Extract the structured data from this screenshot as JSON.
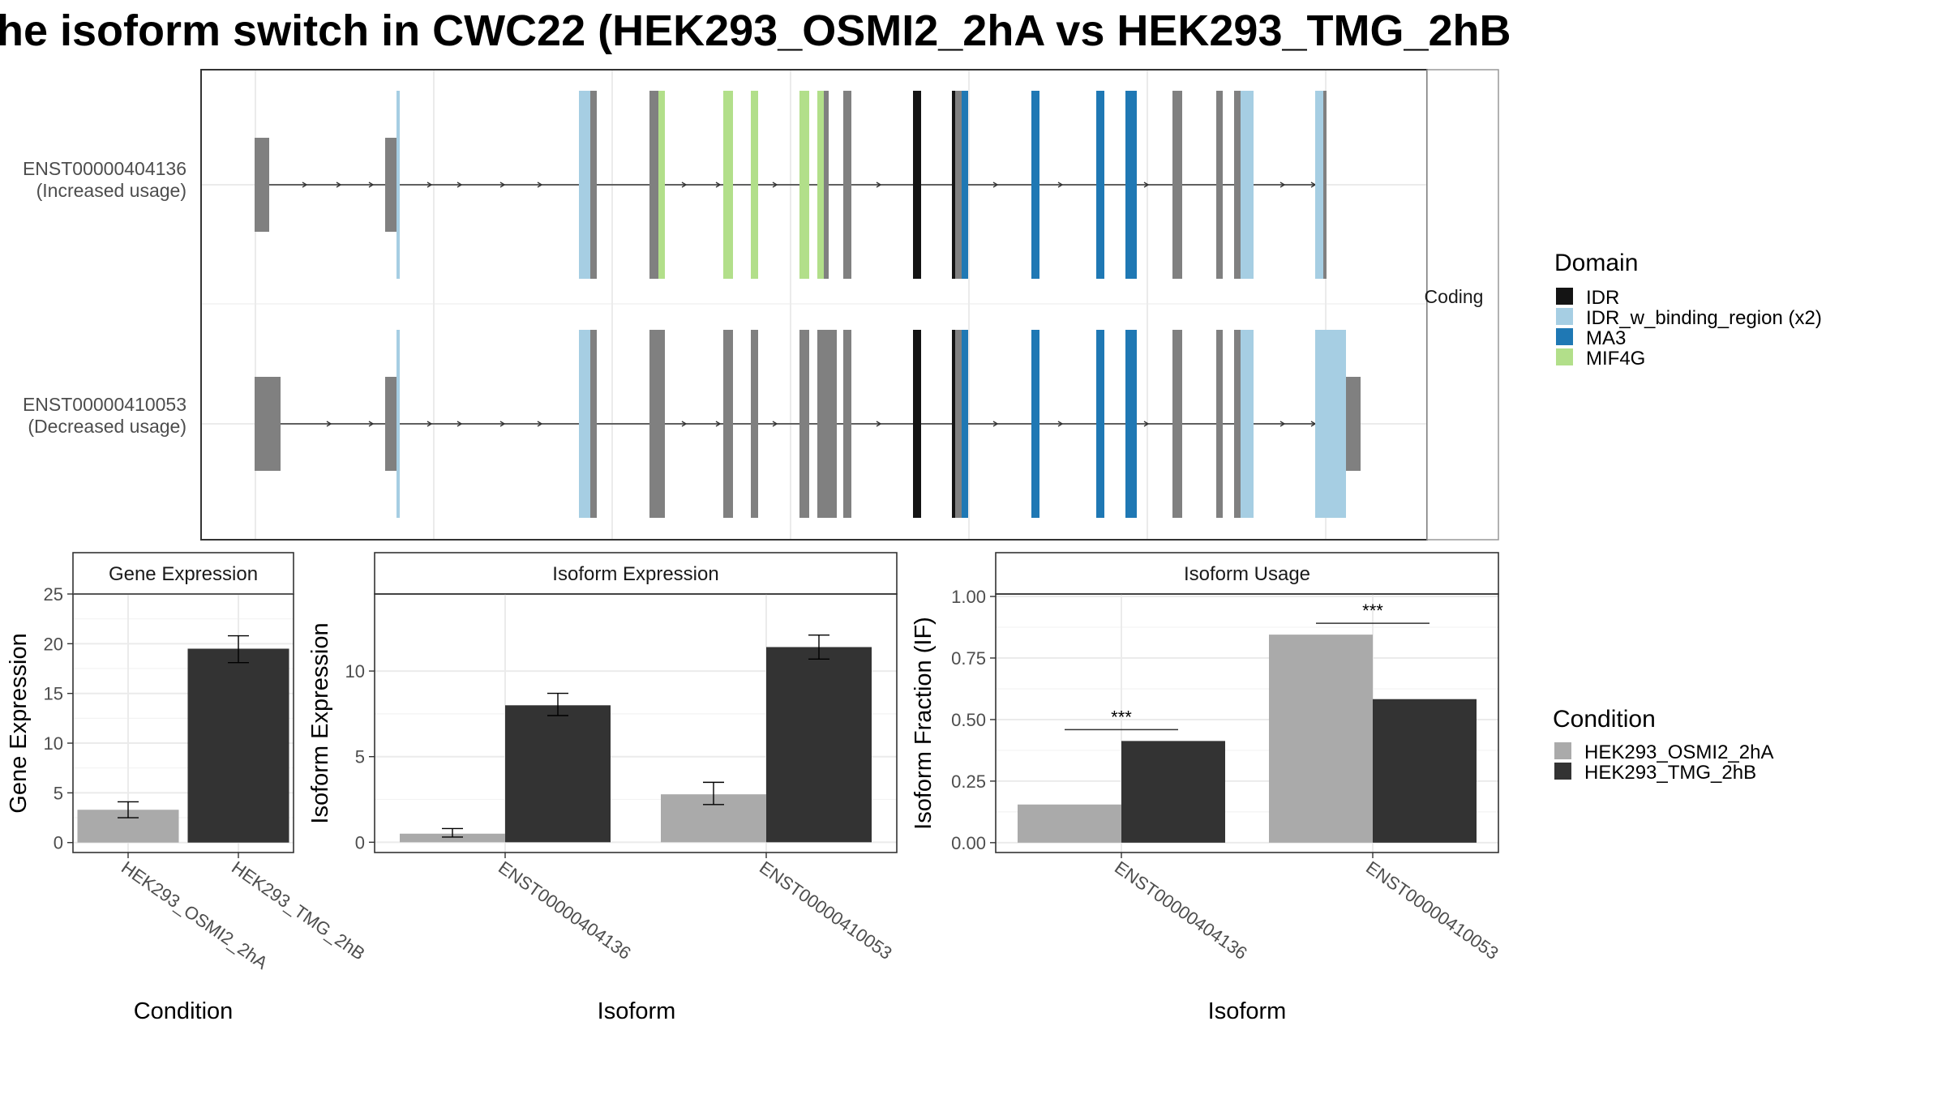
{
  "title": "he isoform switch in CWC22 (HEK293_OSMI2_2hA vs HEK293_TMG_2hB",
  "structure_panel": {
    "strip_label": "Coding",
    "transcripts": [
      {
        "id": "ENST00000404136",
        "usage": "(Increased usage)"
      },
      {
        "id": "ENST00000410053",
        "usage": "(Decreased usage)"
      }
    ]
  },
  "domain_legend": {
    "title": "Domain",
    "items": [
      {
        "label": "IDR",
        "color": "#141414"
      },
      {
        "label": "IDR_w_binding_region (x2)",
        "color": "#a6cee3"
      },
      {
        "label": "MA3",
        "color": "#1f78b4"
      },
      {
        "label": "MIF4G",
        "color": "#b2df8a"
      }
    ]
  },
  "condition_legend": {
    "title": "Condition",
    "items": [
      {
        "label": "HEK293_OSMI2_2hA",
        "color": "#aaaaaa"
      },
      {
        "label": "HEK293_TMG_2hB",
        "color": "#333333"
      }
    ]
  },
  "chart_data": [
    {
      "type": "bar",
      "title": "Gene Expression",
      "xlabel": "Condition",
      "ylabel": "Gene Expression",
      "categories": [
        "HEK293_OSMI2_2hA",
        "HEK293_TMG_2hB"
      ],
      "values": [
        3.3,
        19.5
      ],
      "error": [
        [
          2.5,
          4.1
        ],
        [
          18.1,
          20.8
        ]
      ],
      "colors": [
        "#aaaaaa",
        "#333333"
      ],
      "ylim": [
        -1,
        25
      ],
      "yticks": [
        0,
        5,
        10,
        15,
        20,
        25
      ],
      "grid": true
    },
    {
      "type": "bar",
      "title": "Isoform Expression",
      "xlabel": "Isoform",
      "ylabel": "Isoform Expression",
      "categories": [
        "ENST00000404136",
        "ENST00000410053"
      ],
      "series": [
        {
          "name": "HEK293_OSMI2_2hA",
          "values": [
            0.5,
            2.8
          ],
          "error": [
            [
              0.3,
              0.8
            ],
            [
              2.2,
              3.5
            ]
          ]
        },
        {
          "name": "HEK293_TMG_2hB",
          "values": [
            8.0,
            11.4
          ],
          "error": [
            [
              7.4,
              8.7
            ],
            [
              10.7,
              12.1
            ]
          ]
        }
      ],
      "ylim": [
        -0.6,
        14.5
      ],
      "yticks": [
        0,
        5,
        10
      ],
      "grid": true
    },
    {
      "type": "bar",
      "title": "Isoform Usage",
      "xlabel": "Isoform",
      "ylabel": "Isoform Fraction (IF)",
      "categories": [
        "ENST00000404136",
        "ENST00000410053"
      ],
      "series": [
        {
          "name": "HEK293_OSMI2_2hA",
          "values": [
            0.155,
            0.845
          ]
        },
        {
          "name": "HEK293_TMG_2hB",
          "values": [
            0.413,
            0.583
          ]
        }
      ],
      "significance": [
        "***",
        "***"
      ],
      "ylim": [
        -0.04,
        1.01
      ],
      "yticks": [
        "0.00",
        "0.25",
        "0.50",
        "0.75",
        "1.00"
      ],
      "grid": true
    }
  ]
}
